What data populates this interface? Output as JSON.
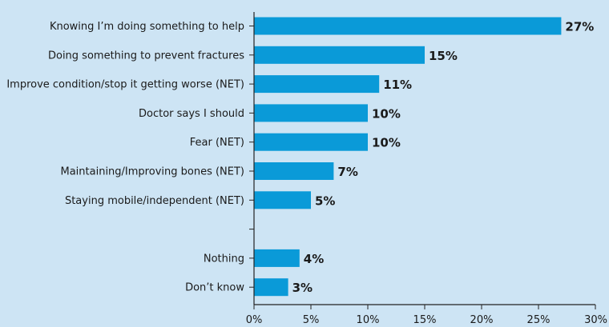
{
  "chart_data": {
    "type": "bar",
    "orientation": "horizontal",
    "categories": [
      "Knowing I’m doing something to help",
      "Doing something to prevent fractures",
      "Improve condition/stop it getting worse (NET)",
      "Doctor says I should",
      "Fear (NET)",
      "Maintaining/Improving bones (NET)",
      "Staying mobile/independent (NET)",
      "",
      "Nothing",
      "Don’t know"
    ],
    "values": [
      27,
      15,
      11,
      10,
      10,
      7,
      5,
      null,
      4,
      3
    ],
    "value_labels": [
      "27%",
      "15%",
      "11%",
      "10%",
      "10%",
      "7%",
      "5%",
      "",
      "4%",
      "3%"
    ],
    "x_ticks": [
      "0%",
      "5%",
      "10%",
      "15%",
      "20%",
      "25%",
      "30%"
    ],
    "xlim": [
      0,
      30
    ],
    "title": "",
    "xlabel": "",
    "ylabel": "",
    "grid": false,
    "colors": {
      "bar": "#0a9ad8",
      "background": "#cde4f4",
      "axis": "#222222"
    }
  }
}
